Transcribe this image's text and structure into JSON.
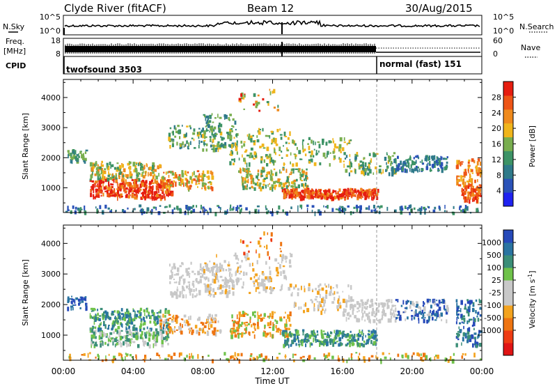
{
  "header": {
    "station": "Clyde River (fitACF)",
    "beam": "Beam 12",
    "date": "30/Aug/2015"
  },
  "top_panels": {
    "nsky": {
      "left_label": "N.Sky",
      "left_ticks": [
        "10^5",
        "10^0"
      ],
      "right_ticks": [
        "10^5",
        "10^0"
      ],
      "right_label": "N.Search"
    },
    "freq": {
      "left_label_1": "Freq.",
      "left_label_2": "[MHz]",
      "left_ticks": [
        "18",
        "8"
      ],
      "right_ticks": [
        "60",
        "0"
      ],
      "right_label": "Nave"
    },
    "cpid": {
      "label": "CPID",
      "mode_1": "twofsound 3503",
      "mode_2": "normal (fast) 151"
    }
  },
  "colors": {
    "power": [
      "#1f22f0",
      "#2a52b8",
      "#2f7a8a",
      "#3d9366",
      "#79ae4f",
      "#f0b51b",
      "#ef8a1c",
      "#ee5516",
      "#e61d10"
    ],
    "velocity": [
      "#2649b9",
      "#2a74a1",
      "#3b8e78",
      "#6fc24a",
      "#c8c8c8",
      "#c8c8c8",
      "#f3a31f",
      "#ee7411",
      "#ee3b12",
      "#e01414"
    ]
  },
  "chart_data": [
    {
      "type": "heatmap",
      "name": "power",
      "ylabel": "Slant Range [km]",
      "yticks": [
        "1000",
        "2000",
        "3000",
        "4000"
      ],
      "ylim": [
        180,
        4600
      ],
      "colorbar_label": "Power [dB]",
      "colorbar_ticks": [
        "4",
        "8",
        "12",
        "16",
        "20",
        "24",
        "28"
      ],
      "colorbar_range": [
        0,
        32
      ]
    },
    {
      "type": "heatmap",
      "name": "velocity",
      "ylabel": "Slant Range [km]",
      "yticks": [
        "1000",
        "2000",
        "3000",
        "4000"
      ],
      "ylim": [
        180,
        4600
      ],
      "colorbar_label": "Velocity [m s",
      "colorbar_label_sup": "-1",
      "colorbar_ticks": [
        "1000",
        "500",
        "100",
        "25",
        "-25",
        "-100",
        "-500",
        "-1000"
      ]
    }
  ],
  "xaxis": {
    "xlabel": "Time UT",
    "ticks": [
      "00:00",
      "04:00",
      "08:00",
      "12:00",
      "16:00",
      "20:00",
      "00:00"
    ]
  }
}
